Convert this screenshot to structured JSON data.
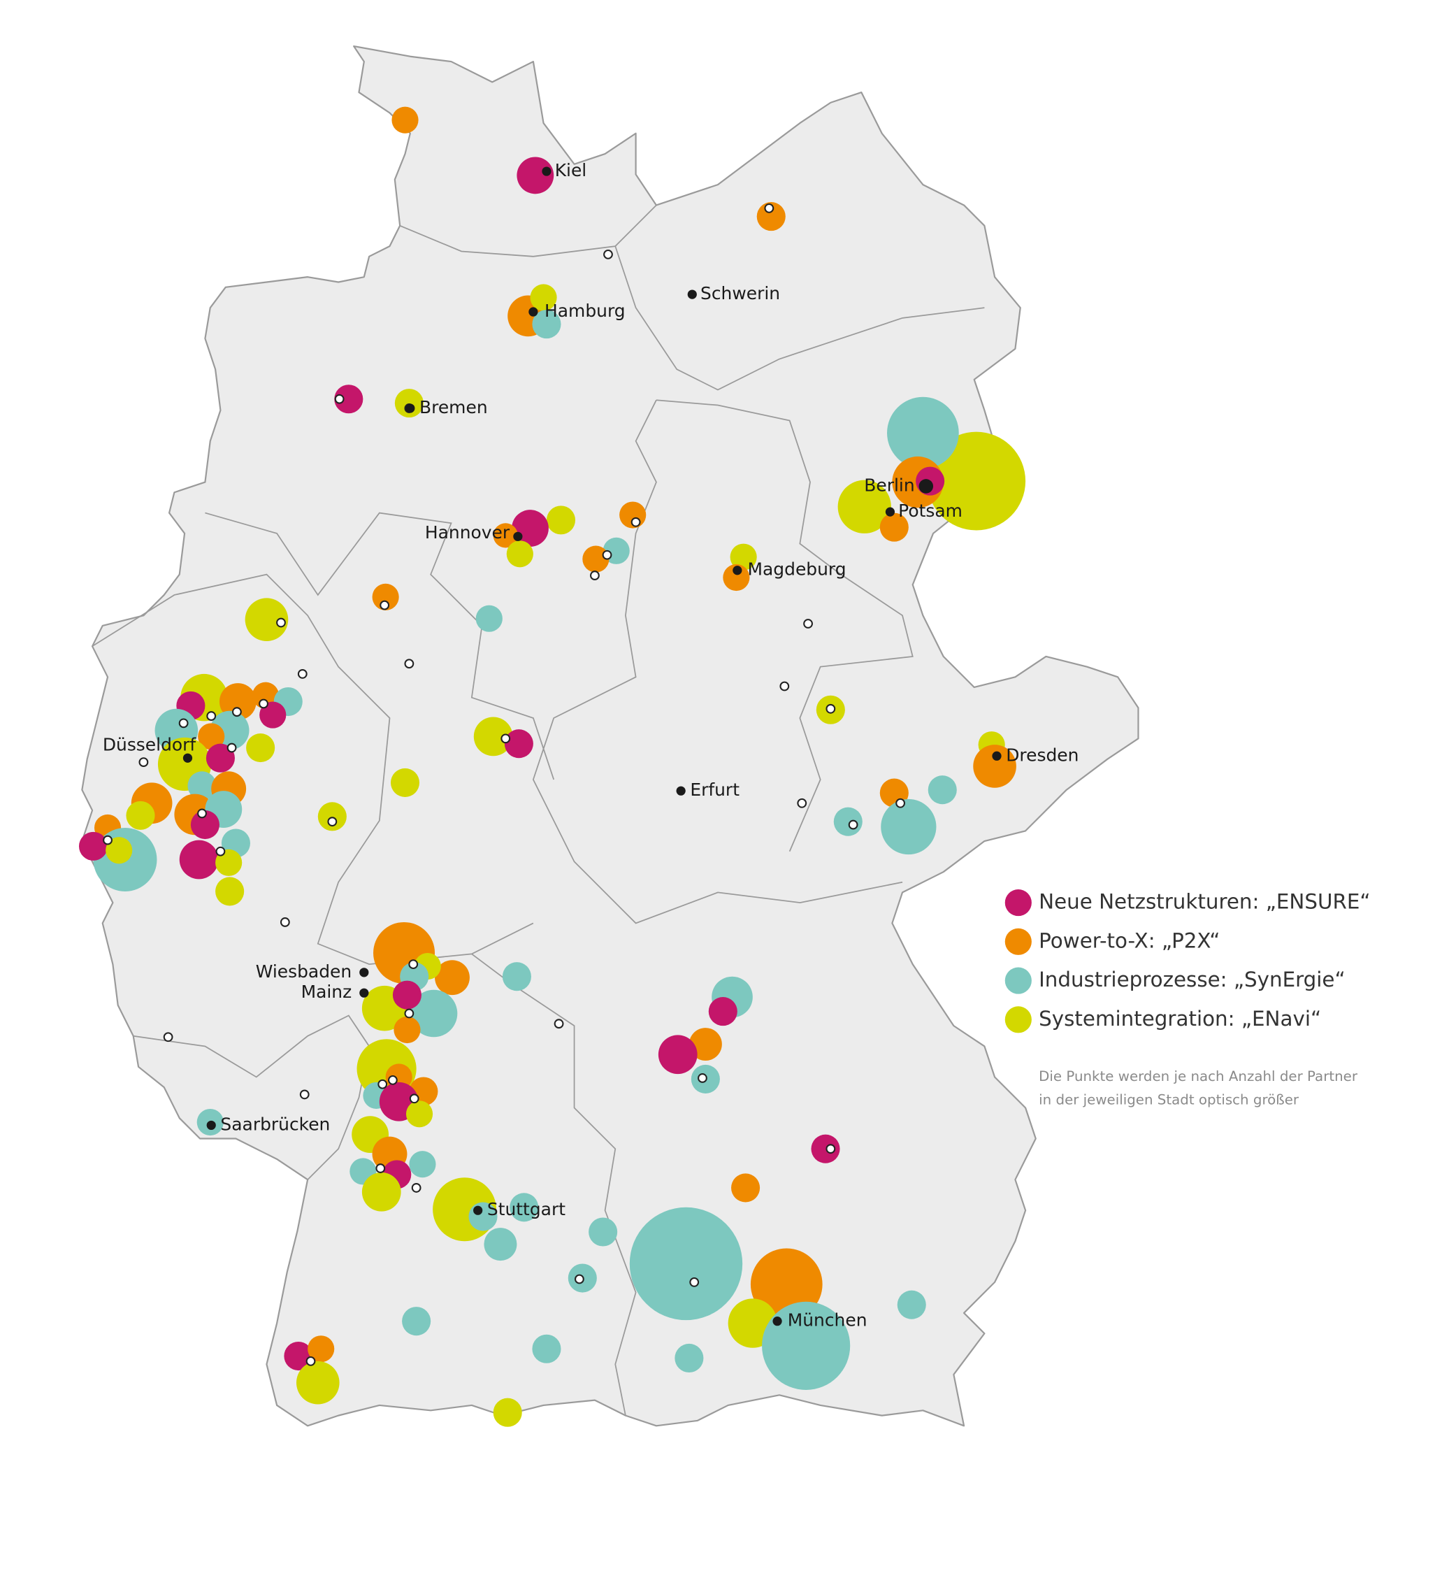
{
  "map": {
    "cities": [
      {
        "label": "Kiel"
      },
      {
        "label": "Hamburg"
      },
      {
        "label": "Schwerin"
      },
      {
        "label": "Bremen"
      },
      {
        "label": "Berlin"
      },
      {
        "label": "Potsam"
      },
      {
        "label": "Hannover"
      },
      {
        "label": "Magdeburg"
      },
      {
        "label": "Düsseldorf"
      },
      {
        "label": "Dresden"
      },
      {
        "label": "Erfurt"
      },
      {
        "label": "Wiesbaden"
      },
      {
        "label": "Mainz"
      },
      {
        "label": "Saarbrücken"
      },
      {
        "label": "Stuttgart"
      },
      {
        "label": "München"
      }
    ],
    "legend": [
      {
        "label": "Neue Netzstrukturen: „ENSURE“",
        "color": "#c4166a"
      },
      {
        "label": "Power-to-X: „P2X“",
        "color": "#ef8a00"
      },
      {
        "label": "Industrieprozesse: „SynErgie“",
        "color": "#7dc8bf"
      },
      {
        "label": "Systemintegration: „ENavi“",
        "color": "#d3d800"
      }
    ],
    "note": [
      "Die Punkte werden je nach Anzahl der Partner",
      "in der jeweiligen Stadt optisch größer"
    ]
  }
}
